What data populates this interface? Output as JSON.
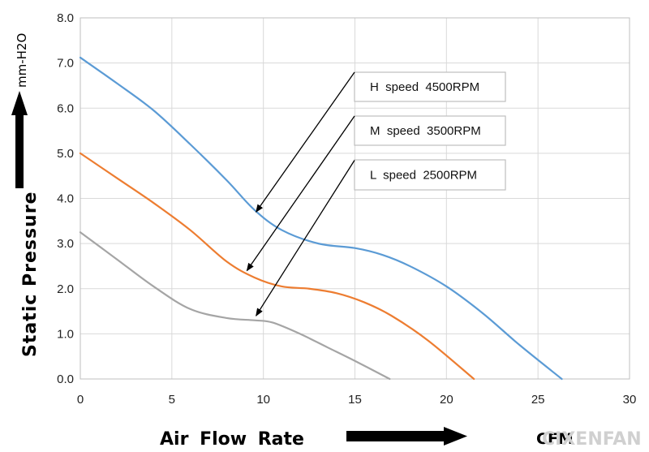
{
  "chart_data": {
    "type": "line",
    "xlim": [
      0,
      30
    ],
    "ylim": [
      0,
      8
    ],
    "x_ticks": [
      "0",
      "5",
      "10",
      "15",
      "20",
      "25",
      "30"
    ],
    "y_ticks": [
      "0.0",
      "1.0",
      "2.0",
      "3.0",
      "4.0",
      "5.0",
      "6.0",
      "7.0",
      "8.0"
    ],
    "ylabel": "Static  Pressure",
    "yunit": "mm-H2O",
    "xlabel": "Air  Flow  Rate",
    "xunit": "CFM",
    "grid": true,
    "series": [
      {
        "name": "H  speed  4500RPM",
        "color": "#5b9bd5",
        "x": [
          0,
          2,
          4,
          6,
          8,
          9.5,
          11,
          13,
          15,
          16.5,
          18,
          20,
          22,
          24,
          26.3
        ],
        "y": [
          7.12,
          6.55,
          5.95,
          5.2,
          4.4,
          3.75,
          3.3,
          3.0,
          2.9,
          2.75,
          2.5,
          2.05,
          1.45,
          0.75,
          0.0
        ]
      },
      {
        "name": "M  speed  3500RPM",
        "color": "#ed7d31",
        "x": [
          0,
          2,
          4,
          6,
          8,
          9.5,
          11,
          12.5,
          14,
          15.5,
          17,
          19,
          21.5
        ],
        "y": [
          5.0,
          4.45,
          3.9,
          3.3,
          2.6,
          2.25,
          2.05,
          2.0,
          1.9,
          1.7,
          1.4,
          0.85,
          0.0
        ]
      },
      {
        "name": "L  speed  2500RPM",
        "color": "#a5a5a5",
        "x": [
          0,
          2,
          4,
          6,
          8,
          9.5,
          10.5,
          12,
          13.5,
          15,
          16.9
        ],
        "y": [
          3.25,
          2.65,
          2.05,
          1.55,
          1.35,
          1.3,
          1.25,
          1.0,
          0.7,
          0.4,
          0.0
        ]
      }
    ],
    "annotations": [
      {
        "text": "H  speed  4500RPM",
        "series": 0,
        "point": [
          9.6,
          3.7
        ]
      },
      {
        "text": "M  speed  3500RPM",
        "series": 1,
        "point": [
          9.1,
          2.4
        ]
      },
      {
        "text": "L  speed  2500RPM",
        "series": 2,
        "point": [
          9.6,
          1.4
        ]
      }
    ]
  },
  "watermark": "CIXENFAN"
}
